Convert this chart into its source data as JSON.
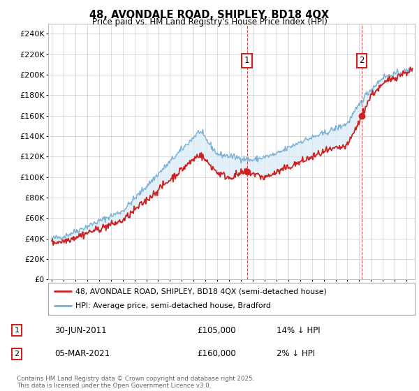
{
  "title_line1": "48, AVONDALE ROAD, SHIPLEY, BD18 4QX",
  "title_line2": "Price paid vs. HM Land Registry's House Price Index (HPI)",
  "legend_line1": "48, AVONDALE ROAD, SHIPLEY, BD18 4QX (semi-detached house)",
  "legend_line2": "HPI: Average price, semi-detached house, Bradford",
  "footer": "Contains HM Land Registry data © Crown copyright and database right 2025.\nThis data is licensed under the Open Government Licence v3.0.",
  "annotation1_label": "1",
  "annotation1_date": "30-JUN-2011",
  "annotation1_price": "£105,000",
  "annotation1_hpi": "14% ↓ HPI",
  "annotation2_label": "2",
  "annotation2_date": "05-MAR-2021",
  "annotation2_price": "£160,000",
  "annotation2_hpi": "2% ↓ HPI",
  "sale1_year": 2011.5,
  "sale1_price": 105000,
  "sale2_year": 2021.2,
  "sale2_price": 160000,
  "ylim_min": 0,
  "ylim_max": 250000,
  "ytick_step": 20000,
  "hpi_color": "#7ab0d4",
  "price_color": "#cc2222",
  "fill_color": "#d8eaf5",
  "annotation_box_color": "#cc2222",
  "background_color": "#ffffff",
  "grid_color": "#cccccc",
  "fig_width": 6.0,
  "fig_height": 5.6,
  "dpi": 100
}
